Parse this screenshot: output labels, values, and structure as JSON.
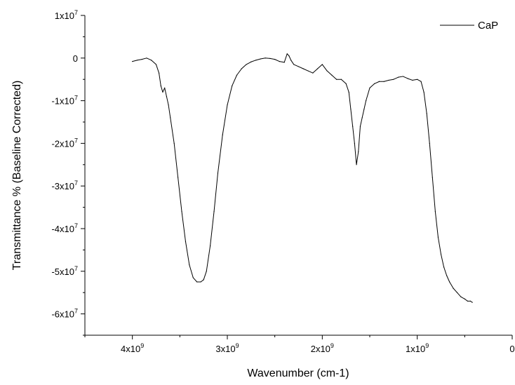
{
  "chart_data": {
    "type": "line",
    "xlabel": "Wavenumber (cm-1)",
    "ylabel": "Transmittance % (Baseline Corrected)",
    "xlim": [
      4500000000,
      0
    ],
    "ylim": [
      -65000000,
      10000000
    ],
    "x_reversed": true,
    "grid": false,
    "legend_position": "top-right",
    "x_ticks": [
      {
        "value": 4000000000,
        "label": "4x10",
        "exp": "9"
      },
      {
        "value": 3000000000,
        "label": "3x10",
        "exp": "9"
      },
      {
        "value": 2000000000,
        "label": "2x10",
        "exp": "9"
      },
      {
        "value": 1000000000,
        "label": "1x10",
        "exp": "9"
      },
      {
        "value": 0,
        "label": "0",
        "exp": ""
      }
    ],
    "y_ticks": [
      {
        "value": 10000000,
        "label": "1x10",
        "exp": "7"
      },
      {
        "value": 0,
        "label": "0",
        "exp": ""
      },
      {
        "value": -10000000,
        "label": "-1x10",
        "exp": "7"
      },
      {
        "value": -20000000,
        "label": "-2x10",
        "exp": "7"
      },
      {
        "value": -30000000,
        "label": "-3x10",
        "exp": "7"
      },
      {
        "value": -40000000,
        "label": "-4x10",
        "exp": "7"
      },
      {
        "value": -50000000,
        "label": "-5x10",
        "exp": "7"
      },
      {
        "value": -60000000,
        "label": "-6x10",
        "exp": "7"
      }
    ],
    "series": [
      {
        "name": "CaP",
        "color": "#000000",
        "x": [
          4000000000,
          3950000000,
          3900000000,
          3850000000,
          3800000000,
          3750000000,
          3720000000,
          3700000000,
          3680000000,
          3660000000,
          3640000000,
          3620000000,
          3600000000,
          3560000000,
          3520000000,
          3480000000,
          3440000000,
          3400000000,
          3360000000,
          3320000000,
          3280000000,
          3250000000,
          3220000000,
          3180000000,
          3140000000,
          3100000000,
          3050000000,
          3000000000,
          2950000000,
          2900000000,
          2850000000,
          2800000000,
          2750000000,
          2700000000,
          2650000000,
          2600000000,
          2550000000,
          2500000000,
          2450000000,
          2400000000,
          2370000000,
          2350000000,
          2330000000,
          2300000000,
          2250000000,
          2200000000,
          2150000000,
          2100000000,
          2050000000,
          2000000000,
          1950000000,
          1900000000,
          1850000000,
          1800000000,
          1750000000,
          1720000000,
          1700000000,
          1680000000,
          1660000000,
          1640000000,
          1620000000,
          1600000000,
          1580000000,
          1560000000,
          1540000000,
          1500000000,
          1450000000,
          1400000000,
          1350000000,
          1300000000,
          1250000000,
          1200000000,
          1150000000,
          1100000000,
          1050000000,
          1000000000,
          960000000,
          930000000,
          900000000,
          870000000,
          840000000,
          810000000,
          780000000,
          750000000,
          720000000,
          690000000,
          660000000,
          620000000,
          580000000,
          540000000,
          500000000,
          470000000,
          440000000,
          420000000
        ],
        "y": [
          -800000,
          -500000,
          -300000,
          0,
          -500000,
          -1500000,
          -3500000,
          -6500000,
          -8000000,
          -7000000,
          -9000000,
          -11000000,
          -14000000,
          -20000000,
          -28000000,
          -36000000,
          -43000000,
          -48500000,
          -51500000,
          -52500000,
          -52500000,
          -52000000,
          -50000000,
          -44000000,
          -36000000,
          -27000000,
          -18000000,
          -11000000,
          -6500000,
          -4000000,
          -2500000,
          -1500000,
          -900000,
          -500000,
          -200000,
          0,
          -100000,
          -300000,
          -800000,
          -1000000,
          1000000,
          500000,
          -500000,
          -1500000,
          -2000000,
          -2500000,
          -3000000,
          -3500000,
          -2500000,
          -1500000,
          -3000000,
          -4000000,
          -5000000,
          -5000000,
          -6000000,
          -8000000,
          -12000000,
          -16000000,
          -20000000,
          -25000000,
          -22000000,
          -16000000,
          -14000000,
          -12000000,
          -10000000,
          -7000000,
          -6000000,
          -5500000,
          -5500000,
          -5200000,
          -5000000,
          -4500000,
          -4300000,
          -4800000,
          -5200000,
          -5000000,
          -5500000,
          -8000000,
          -13000000,
          -20000000,
          -28000000,
          -36000000,
          -42000000,
          -46000000,
          -49000000,
          -51000000,
          -52500000,
          -54000000,
          -55000000,
          -56000000,
          -56500000,
          -57000000,
          -57000000,
          -57300000
        ]
      }
    ]
  }
}
